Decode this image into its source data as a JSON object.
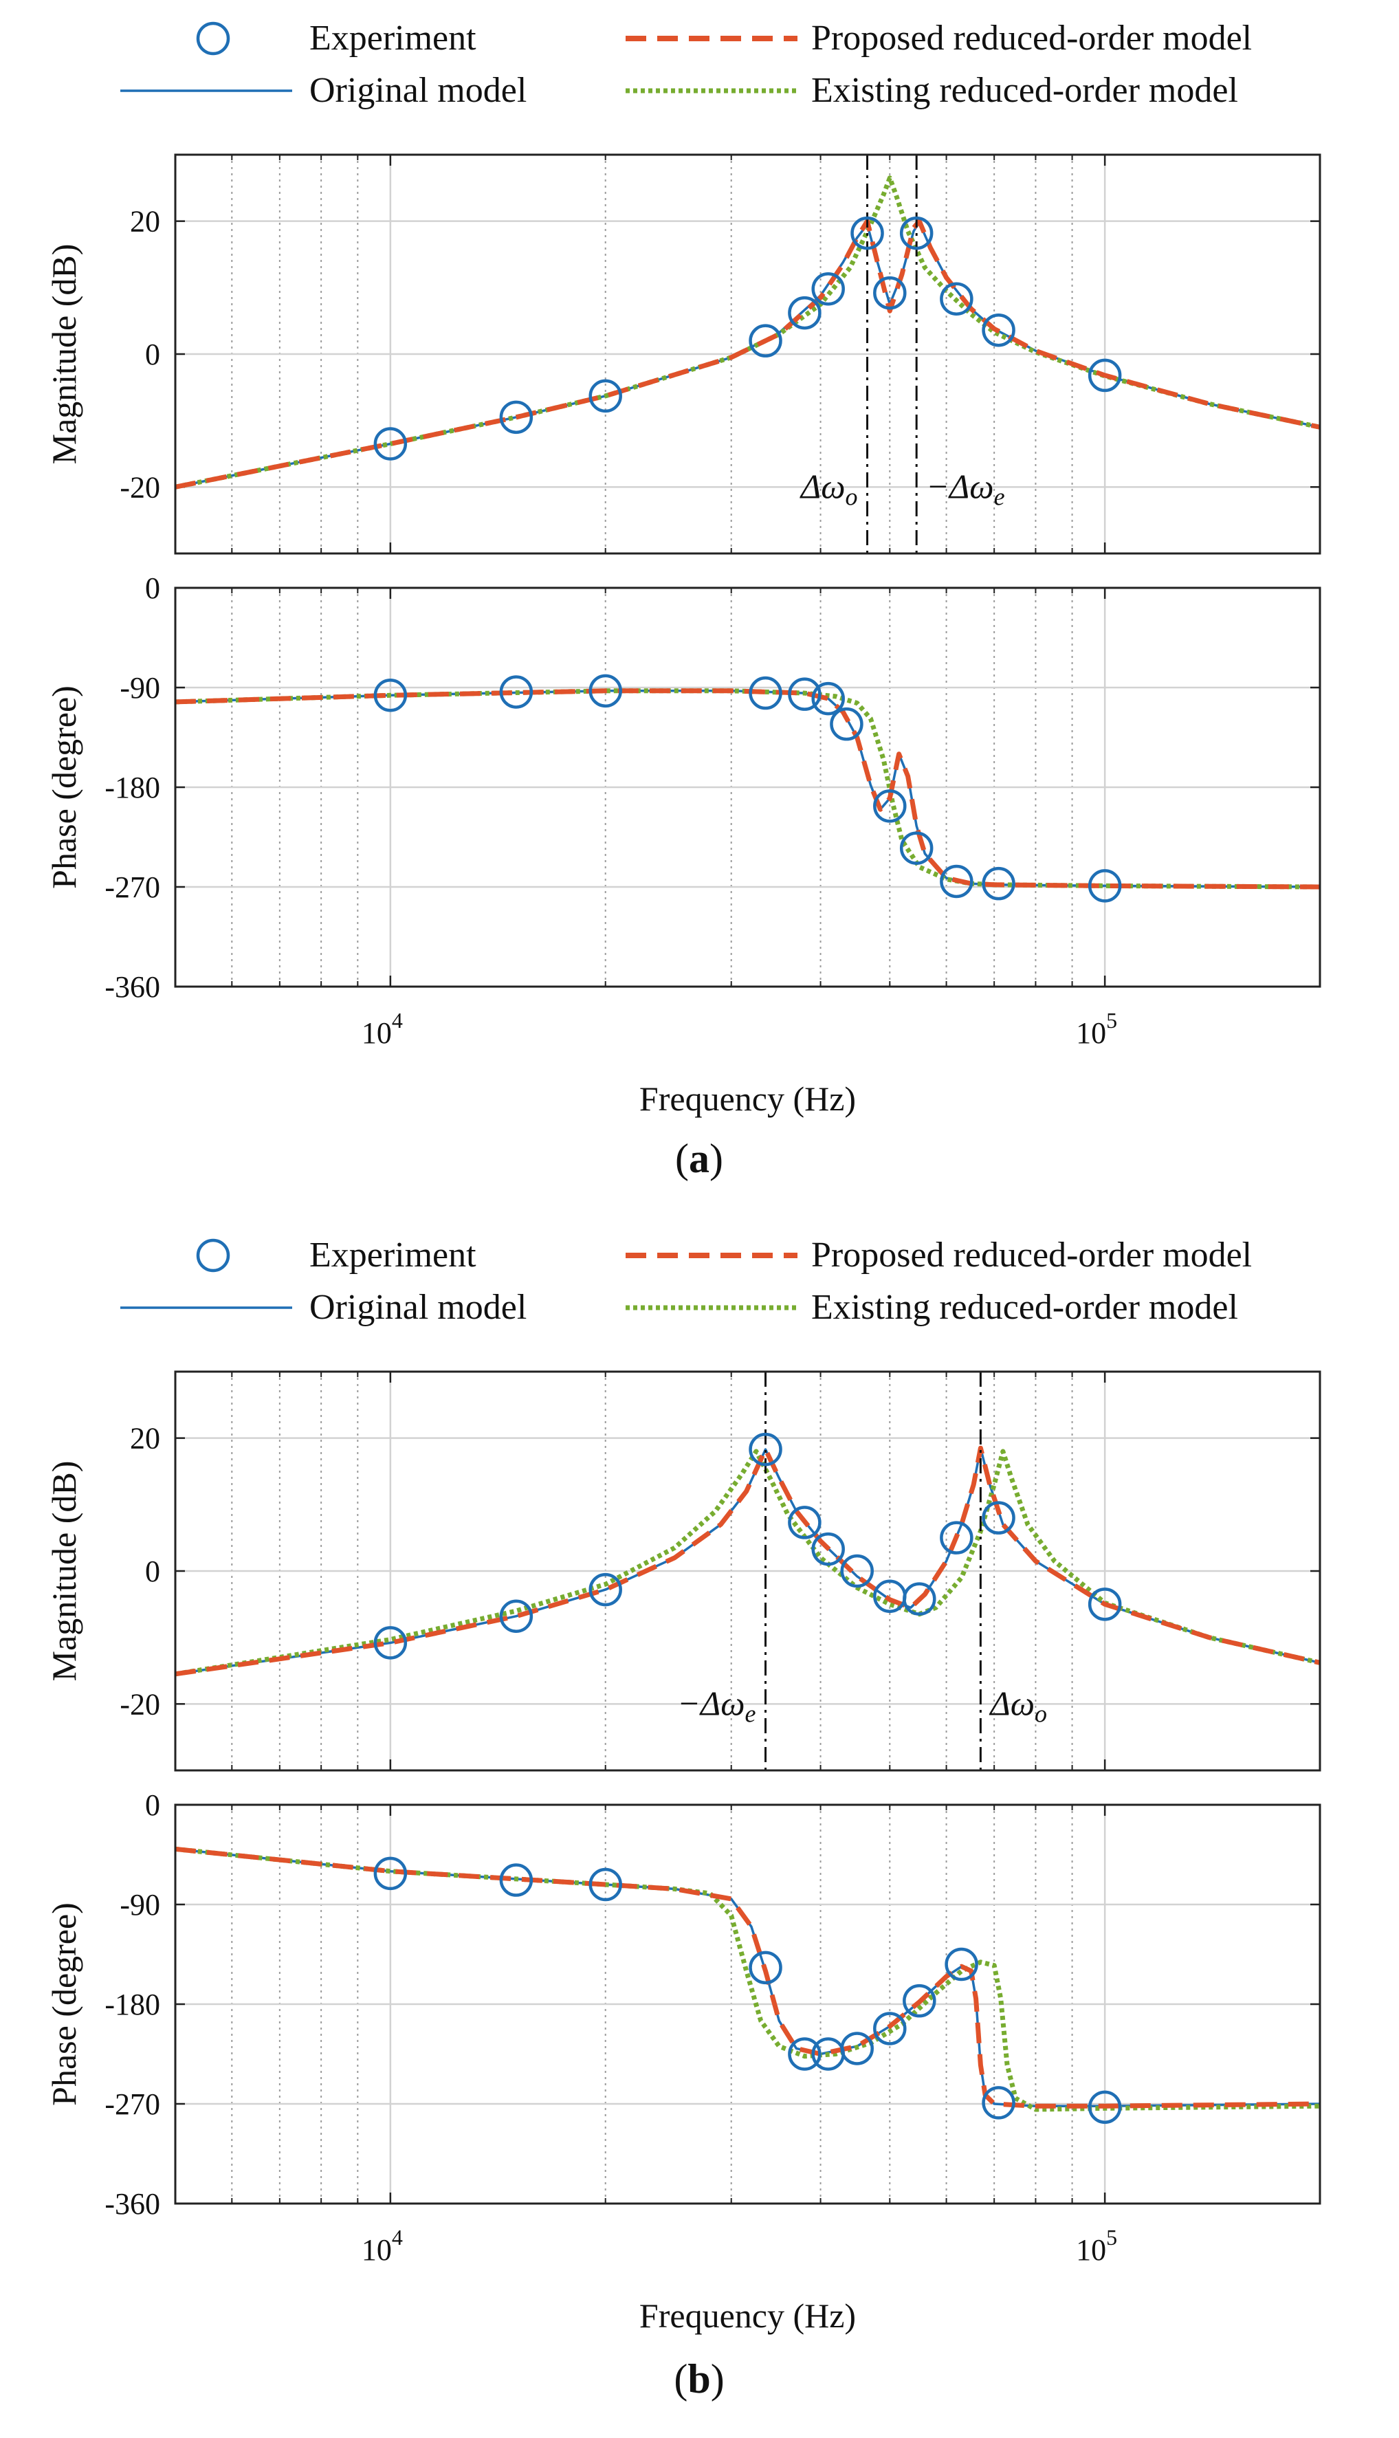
{
  "chart_data": [
    {
      "panel": "a",
      "type": "line",
      "caption_letter": "a",
      "legend": {
        "placement": "above",
        "experiment": "Experiment",
        "original": "Original model",
        "proposed": "Proposed reduced-order model",
        "existing": "Existing reduced-order model"
      },
      "colors": {
        "experiment": "#1f6fb5",
        "original": "#1f6fb5",
        "proposed": "#e0522a",
        "existing": "#77ac30"
      },
      "xlabel": "Frequency (Hz)",
      "xscale": "log",
      "xlim": [
        5000,
        200000
      ],
      "x_ticks": [
        {
          "base": "10",
          "exp": "4"
        },
        {
          "base": "10",
          "exp": "5"
        }
      ],
      "x_tick_values": [
        10000,
        100000
      ],
      "magnitude": {
        "ylabel": "Magnitude (dB)",
        "ylim": [
          -30,
          30
        ],
        "yticks": [
          20,
          0,
          -20
        ],
        "ytick_labels": [
          "20",
          "0",
          "-20"
        ],
        "markers": [
          {
            "x": 46500,
            "label": "Δωo",
            "label_side": "left",
            "text_main": "Δω",
            "text_sub": "o"
          },
          {
            "x": 54500,
            "label": "−Δωe",
            "label_side": "right",
            "text_main": "−Δω",
            "text_sub": "e"
          }
        ],
        "experiment": {
          "x": [
            10000,
            15000,
            20000,
            33500,
            38000,
            41000,
            46500,
            50000,
            54500,
            62000,
            71000,
            100000
          ],
          "y": [
            -13.5,
            -9.5,
            -6.3,
            2.0,
            6.2,
            9.8,
            18.2,
            9.2,
            18.2,
            8.3,
            3.6,
            -3.2
          ]
        },
        "original": {
          "x": [
            5000,
            10000,
            15000,
            20000,
            30000,
            35000,
            40000,
            43000,
            45000,
            46500,
            48000,
            50000,
            52000,
            54000,
            55000,
            57000,
            60000,
            65000,
            70000,
            80000,
            100000,
            140000,
            200000
          ],
          "y": [
            -20,
            -13.5,
            -9.5,
            -6.3,
            -0.5,
            3.2,
            8.8,
            13.8,
            17.5,
            19.5,
            14,
            7.5,
            12,
            18.5,
            19.8,
            16,
            11.5,
            6.8,
            3.8,
            0.5,
            -3.2,
            -7.5,
            -11
          ]
        },
        "proposed": {
          "x": [
            5000,
            10000,
            15000,
            20000,
            30000,
            35000,
            40000,
            43000,
            45000,
            46500,
            48000,
            50000,
            52000,
            54000,
            55000,
            57000,
            60000,
            65000,
            70000,
            80000,
            100000,
            140000,
            200000
          ],
          "y": [
            -20,
            -13.5,
            -9.5,
            -6.3,
            -0.5,
            3.0,
            8.5,
            13.5,
            17.5,
            20,
            14,
            6.5,
            12,
            19,
            20,
            16,
            11.5,
            6.8,
            3.8,
            0.5,
            -3.2,
            -7.5,
            -11
          ]
        },
        "existing": {
          "x": [
            5000,
            10000,
            15000,
            20000,
            30000,
            35000,
            40000,
            44000,
            47000,
            49000,
            50000,
            51000,
            53000,
            56000,
            60000,
            65000,
            70000,
            80000,
            100000,
            140000,
            200000
          ],
          "y": [
            -20,
            -13.5,
            -9.5,
            -6.3,
            -0.5,
            3.0,
            7.5,
            13,
            19.5,
            24,
            26.5,
            24,
            18.5,
            13,
            9.5,
            6,
            3.3,
            0.3,
            -3.3,
            -7.5,
            -11
          ]
        }
      },
      "phase": {
        "ylabel": "Phase (degree)",
        "ylim": [
          -360,
          0
        ],
        "yticks": [
          0,
          -90,
          -180,
          -270,
          -360
        ],
        "ytick_labels": [
          "0",
          "-90",
          "-180",
          "-270",
          "-360"
        ],
        "experiment": {
          "x": [
            10000,
            15000,
            20000,
            33500,
            38000,
            41000,
            43500,
            50000,
            54500,
            62000,
            71000,
            100000
          ],
          "y": [
            -97,
            -94,
            -93,
            -95,
            -96,
            -100,
            -123,
            -197,
            -235,
            -265,
            -267,
            -269
          ]
        },
        "original": {
          "x": [
            5000,
            10000,
            20000,
            30000,
            38000,
            41000,
            43000,
            45000,
            47000,
            48500,
            50000,
            51500,
            53000,
            54500,
            56000,
            60000,
            65000,
            70000,
            100000,
            200000
          ],
          "y": [
            -103,
            -97,
            -93,
            -93,
            -95,
            -100,
            -112,
            -135,
            -178,
            -200,
            -190,
            -150,
            -170,
            -215,
            -240,
            -262,
            -267,
            -268,
            -269,
            -270
          ]
        },
        "proposed": {
          "x": [
            5000,
            10000,
            20000,
            30000,
            38000,
            41000,
            43000,
            45000,
            47000,
            48500,
            50000,
            51500,
            53000,
            54500,
            56000,
            60000,
            65000,
            70000,
            100000,
            200000
          ],
          "y": [
            -103,
            -97,
            -93,
            -93,
            -95,
            -100,
            -112,
            -135,
            -178,
            -200,
            -190,
            -150,
            -170,
            -215,
            -240,
            -262,
            -267,
            -268,
            -269,
            -270
          ]
        },
        "existing": {
          "x": [
            5000,
            10000,
            20000,
            30000,
            38000,
            42000,
            45000,
            47000,
            49000,
            50500,
            52000,
            55000,
            60000,
            65000,
            70000,
            100000,
            200000
          ],
          "y": [
            -103,
            -97,
            -93,
            -93,
            -95,
            -98,
            -104,
            -118,
            -155,
            -195,
            -228,
            -252,
            -263,
            -267,
            -268,
            -269,
            -270
          ]
        }
      }
    },
    {
      "panel": "b",
      "type": "line",
      "caption_letter": "b",
      "legend": {
        "placement": "above",
        "experiment": "Experiment",
        "original": "Original model",
        "proposed": "Proposed reduced-order model",
        "existing": "Existing reduced-order model"
      },
      "colors": {
        "experiment": "#1f6fb5",
        "original": "#1f6fb5",
        "proposed": "#e0522a",
        "existing": "#77ac30"
      },
      "xlabel": "Frequency (Hz)",
      "xscale": "log",
      "xlim": [
        5000,
        200000
      ],
      "x_ticks": [
        {
          "base": "10",
          "exp": "4"
        },
        {
          "base": "10",
          "exp": "5"
        }
      ],
      "x_tick_values": [
        10000,
        100000
      ],
      "magnitude": {
        "ylabel": "Magnitude (dB)",
        "ylim": [
          -30,
          30
        ],
        "yticks": [
          20,
          0,
          -20
        ],
        "ytick_labels": [
          "20",
          "0",
          "-20"
        ],
        "markers": [
          {
            "x": 33500,
            "label": "−Δωe",
            "label_side": "left",
            "text_main": "−Δω",
            "text_sub": "e"
          },
          {
            "x": 67000,
            "label": "Δωo",
            "label_side": "right",
            "text_main": "Δω",
            "text_sub": "o"
          }
        ],
        "experiment": {
          "x": [
            10000,
            15000,
            20000,
            33500,
            38000,
            41000,
            45000,
            50000,
            55000,
            62000,
            71000,
            100000
          ],
          "y": [
            -10.8,
            -6.8,
            -2.8,
            18.3,
            7.3,
            3.3,
            0.0,
            -3.8,
            -4.2,
            5.0,
            8.0,
            -5.0
          ]
        },
        "original": {
          "x": [
            5000,
            10000,
            15000,
            20000,
            25000,
            29000,
            31500,
            33500,
            35000,
            37000,
            40000,
            45000,
            50000,
            53500,
            56000,
            60000,
            63000,
            65500,
            67000,
            69000,
            72000,
            80000,
            100000,
            140000,
            200000
          ],
          "y": [
            -15.5,
            -10.8,
            -6.8,
            -2.8,
            2,
            7,
            12,
            18.3,
            14,
            9,
            4.5,
            -0.8,
            -4.3,
            -5.5,
            -3.5,
            1.5,
            7,
            13,
            18.5,
            13,
            7,
            1.5,
            -5,
            -10,
            -13.8
          ]
        },
        "proposed": {
          "x": [
            5000,
            10000,
            15000,
            20000,
            25000,
            29000,
            31500,
            33500,
            35000,
            37000,
            40000,
            45000,
            50000,
            53500,
            56000,
            60000,
            63000,
            65500,
            67000,
            69000,
            72000,
            80000,
            100000,
            140000,
            200000
          ],
          "y": [
            -15.5,
            -10.8,
            -6.8,
            -2.8,
            2,
            7,
            12,
            18.3,
            14,
            9,
            4.5,
            -0.8,
            -4.3,
            -5.5,
            -3.5,
            1.5,
            7,
            13,
            18.5,
            13,
            7,
            1.5,
            -5,
            -10,
            -13.8
          ]
        },
        "existing": {
          "x": [
            5000,
            10000,
            15000,
            20000,
            25000,
            28500,
            31000,
            32500,
            34000,
            36000,
            40000,
            45000,
            50000,
            55000,
            58000,
            63000,
            67000,
            70000,
            72000,
            74000,
            78000,
            85000,
            100000,
            140000,
            200000
          ],
          "y": [
            -15.5,
            -10.3,
            -6.0,
            -2.0,
            3.5,
            9,
            14.5,
            18,
            14,
            8.5,
            2,
            -2.5,
            -5,
            -6.5,
            -5.5,
            -1,
            6,
            13,
            18,
            14,
            7,
            1.5,
            -4.8,
            -10,
            -13.8
          ]
        }
      },
      "phase": {
        "ylabel": "Phase (degree)",
        "ylim": [
          -360,
          0
        ],
        "yticks": [
          0,
          -90,
          -180,
          -270,
          -360
        ],
        "ytick_labels": [
          "0",
          "-90",
          "-180",
          "-270",
          "-360"
        ],
        "experiment": {
          "x": [
            10000,
            15000,
            20000,
            33500,
            38000,
            41000,
            45000,
            50000,
            55000,
            63000,
            71000,
            100000
          ],
          "y": [
            -62,
            -68,
            -72,
            -147,
            -225,
            -225,
            -220,
            -202,
            -177,
            -144,
            -269,
            -273
          ]
        },
        "original": {
          "x": [
            5000,
            10000,
            15000,
            20000,
            25000,
            30000,
            32000,
            33500,
            35000,
            37000,
            40000,
            45000,
            50000,
            55000,
            60000,
            63000,
            65000,
            66000,
            67000,
            68000,
            70000,
            80000,
            100000,
            200000
          ],
          "y": [
            -40,
            -60,
            -67,
            -72,
            -76,
            -85,
            -110,
            -150,
            -195,
            -220,
            -225,
            -218,
            -200,
            -178,
            -155,
            -146,
            -150,
            -175,
            -235,
            -262,
            -270,
            -272,
            -272,
            -270
          ]
        },
        "proposed": {
          "x": [
            5000,
            10000,
            15000,
            20000,
            25000,
            30000,
            32000,
            33500,
            35000,
            37000,
            40000,
            45000,
            50000,
            55000,
            60000,
            63000,
            65000,
            66000,
            67000,
            68000,
            70000,
            80000,
            100000,
            200000
          ],
          "y": [
            -40,
            -60,
            -67,
            -72,
            -76,
            -85,
            -110,
            -150,
            -195,
            -220,
            -225,
            -218,
            -200,
            -178,
            -155,
            -146,
            -150,
            -175,
            -235,
            -262,
            -270,
            -272,
            -272,
            -270
          ]
        },
        "existing": {
          "x": [
            5000,
            10000,
            15000,
            20000,
            25000,
            28000,
            30000,
            31500,
            33000,
            35000,
            38000,
            42000,
            47000,
            52000,
            58000,
            63000,
            67000,
            70000,
            71500,
            73000,
            75000,
            80000,
            100000,
            200000
          ],
          "y": [
            -40,
            -60,
            -67,
            -72,
            -76,
            -80,
            -100,
            -150,
            -195,
            -218,
            -227,
            -225,
            -215,
            -198,
            -170,
            -150,
            -142,
            -145,
            -175,
            -235,
            -265,
            -275,
            -274,
            -272
          ]
        }
      }
    }
  ]
}
